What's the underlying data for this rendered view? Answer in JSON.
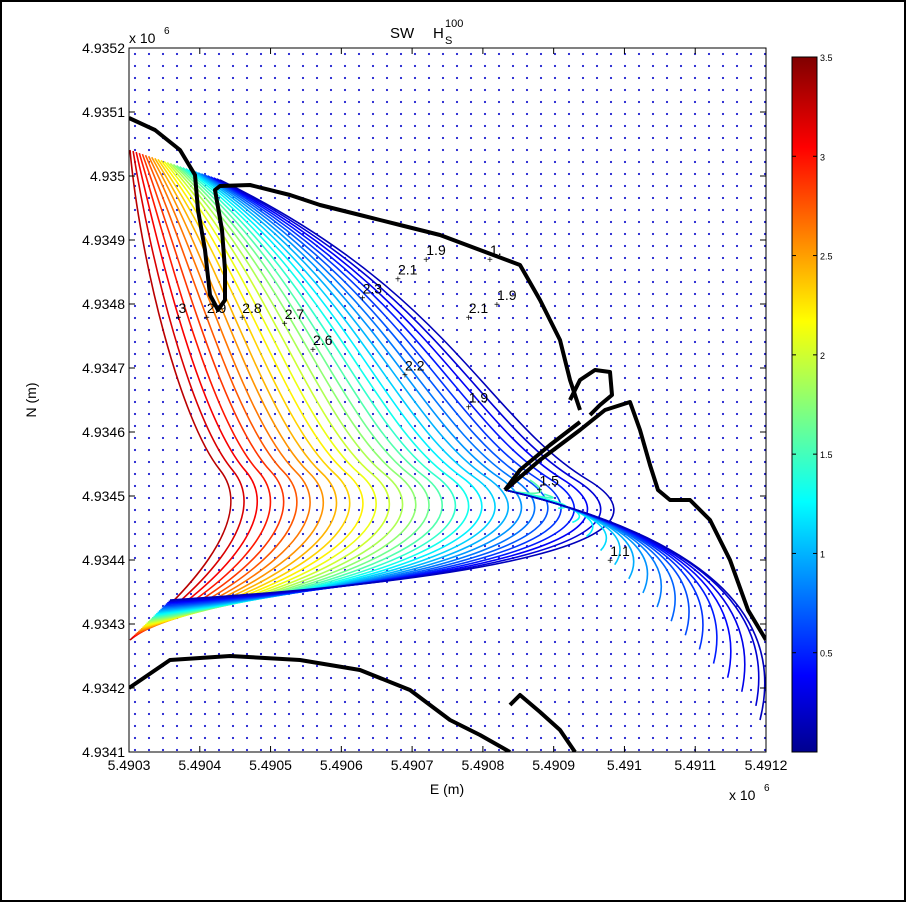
{
  "chart_data": {
    "type": "contour",
    "title": "SW",
    "title_symbol": "H",
    "title_subscript": "S",
    "title_superscript": "100",
    "xlabel": "E (m)",
    "ylabel": "N (m)",
    "x_exponent_label": "x 10",
    "x_exponent": "6",
    "y_exponent_label": "x 10",
    "y_exponent": "6",
    "xlim": [
      5.4903,
      5.4912
    ],
    "ylim": [
      4.9341,
      4.9352
    ],
    "xticks": [
      "5.4903",
      "5.4904",
      "5.4905",
      "5.4906",
      "5.4907",
      "5.4908",
      "5.4909",
      "5.491",
      "5.4911",
      "5.4912"
    ],
    "yticks": [
      "4.9341",
      "4.9342",
      "4.9343",
      "4.9344",
      "4.9345",
      "4.9346",
      "4.9347",
      "4.9348",
      "4.9349",
      "4.935",
      "4.9351",
      "4.9352"
    ],
    "colorbar": {
      "range": [
        0,
        3.5
      ],
      "ticks": [
        "0.5",
        "1",
        "1.5",
        "2",
        "2.5",
        "3",
        "3.5"
      ],
      "colormap": "jet"
    },
    "contour_labels": [
      {
        "text": "3",
        "x": 5.49037,
        "y": 4.93478
      },
      {
        "text": "2.9",
        "x": 5.49041,
        "y": 4.93478
      },
      {
        "text": "2.8",
        "x": 5.49046,
        "y": 4.93478
      },
      {
        "text": "2.7",
        "x": 5.49052,
        "y": 4.93477
      },
      {
        "text": "2.6",
        "x": 5.49056,
        "y": 4.93473
      },
      {
        "text": "2.3",
        "x": 5.49063,
        "y": 4.93481
      },
      {
        "text": "2.2",
        "x": 5.49069,
        "y": 4.93469
      },
      {
        "text": "2.1",
        "x": 5.49068,
        "y": 4.93484
      },
      {
        "text": "2.1",
        "x": 5.49078,
        "y": 4.93478
      },
      {
        "text": "1.9",
        "x": 5.49072,
        "y": 4.93487
      },
      {
        "text": "1.9",
        "x": 5.49082,
        "y": 4.9348
      },
      {
        "text": "1.9",
        "x": 5.49078,
        "y": 4.93464
      },
      {
        "text": "1.",
        "x": 5.49081,
        "y": 4.93487
      },
      {
        "text": "1.5",
        "x": 5.49088,
        "y": 4.93451
      },
      {
        "text": "1.1",
        "x": 5.49098,
        "y": 4.9344
      }
    ]
  }
}
